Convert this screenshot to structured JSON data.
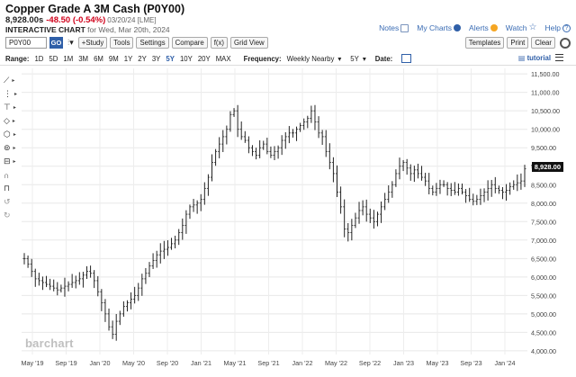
{
  "header": {
    "title": "Copper Grade A 3M Cash (P0Y00)",
    "last": "8,928.00s",
    "change": "-48.50 (-0.54%)",
    "timestamp": "03/20/24 [LME]",
    "chart_label": "INTERACTIVE CHART",
    "chart_date": "for Wed, Mar 20th, 2024"
  },
  "toplinks": {
    "notes": "Notes",
    "my_charts": "My Charts",
    "alerts": "Alerts",
    "watch": "Watch",
    "help": "Help"
  },
  "toolbar": {
    "symbol_value": "P0Y00",
    "go": "GO",
    "study": "+Study",
    "tools": "Tools",
    "settings": "Settings",
    "compare": "Compare",
    "fx": "f(x)",
    "grid_view": "Grid View",
    "templates": "Templates",
    "print": "Print",
    "clear": "Clear"
  },
  "rangebar": {
    "range_label": "Range:",
    "ranges": [
      "1D",
      "5D",
      "1M",
      "3M",
      "6M",
      "9M",
      "1Y",
      "2Y",
      "3Y",
      "5Y",
      "10Y",
      "20Y",
      "MAX"
    ],
    "selected_range": "5Y",
    "frequency_label": "Frequency:",
    "frequency_value": "Weekly Nearby",
    "period_value": "5Y",
    "date_label": "Date:",
    "tutorial": "tutorial"
  },
  "price_box": "8,928.00",
  "watermark": "barchart",
  "chart_data": {
    "type": "line",
    "x_labels": [
      "May '19",
      "Sep '19",
      "Jan '20",
      "May '20",
      "Sep '20",
      "Jan '21",
      "May '21",
      "Sep '21",
      "Jan '22",
      "May '22",
      "Sep '22",
      "Jan '23",
      "May '23",
      "Sep '23",
      "Jan '24"
    ],
    "y_ticks": [
      "11,500.00",
      "11,000.00",
      "10,500.00",
      "10,000.00",
      "9,500.00",
      "9,000.00",
      "8,500.00",
      "8,000.00",
      "7,500.00",
      "7,000.00",
      "6,500.00",
      "6,000.00",
      "5,500.00",
      "5,000.00",
      "4,500.00",
      "4,000.00"
    ],
    "ylim": [
      3900,
      11650
    ],
    "grid": true,
    "series": [
      {
        "values": [
          6500,
          6350,
          6150,
          5950,
          5900,
          5850,
          5800,
          5750,
          5700,
          5650,
          5700,
          5750,
          5800,
          5850,
          5900,
          5950,
          6050,
          6150,
          6100,
          5900,
          5600,
          5300,
          5000,
          4650,
          4450,
          4800,
          5000,
          5200,
          5300,
          5400,
          5500,
          5700,
          5950,
          6100,
          6300,
          6450,
          6600,
          6700,
          6750,
          6800,
          6900,
          7000,
          7200,
          7400,
          7700,
          7900,
          7950,
          8000,
          8100,
          8400,
          8700,
          9100,
          9400,
          9600,
          9800,
          10000,
          10400,
          10500,
          10000,
          9800,
          9700,
          9500,
          9400,
          9300,
          9500,
          9600,
          9400,
          9300,
          9400,
          9500,
          9700,
          9800,
          9900,
          9900,
          10000,
          10100,
          10200,
          10300,
          10500,
          10200,
          9900,
          9800,
          9400,
          9100,
          8800,
          8300,
          7900,
          7300,
          7200,
          7400,
          7600,
          7800,
          7900,
          7700,
          7600,
          7500,
          7700,
          7900,
          8100,
          8300,
          8500,
          8800,
          9000,
          9100,
          8950,
          8800,
          8900,
          8800,
          8700,
          8600,
          8400,
          8300,
          8400,
          8500,
          8500,
          8400,
          8350,
          8300,
          8400,
          8300,
          8200,
          8100,
          8050,
          8100,
          8200,
          8300,
          8400,
          8500,
          8400,
          8350,
          8300,
          8350,
          8450,
          8500,
          8550,
          8600,
          8928
        ]
      }
    ]
  }
}
